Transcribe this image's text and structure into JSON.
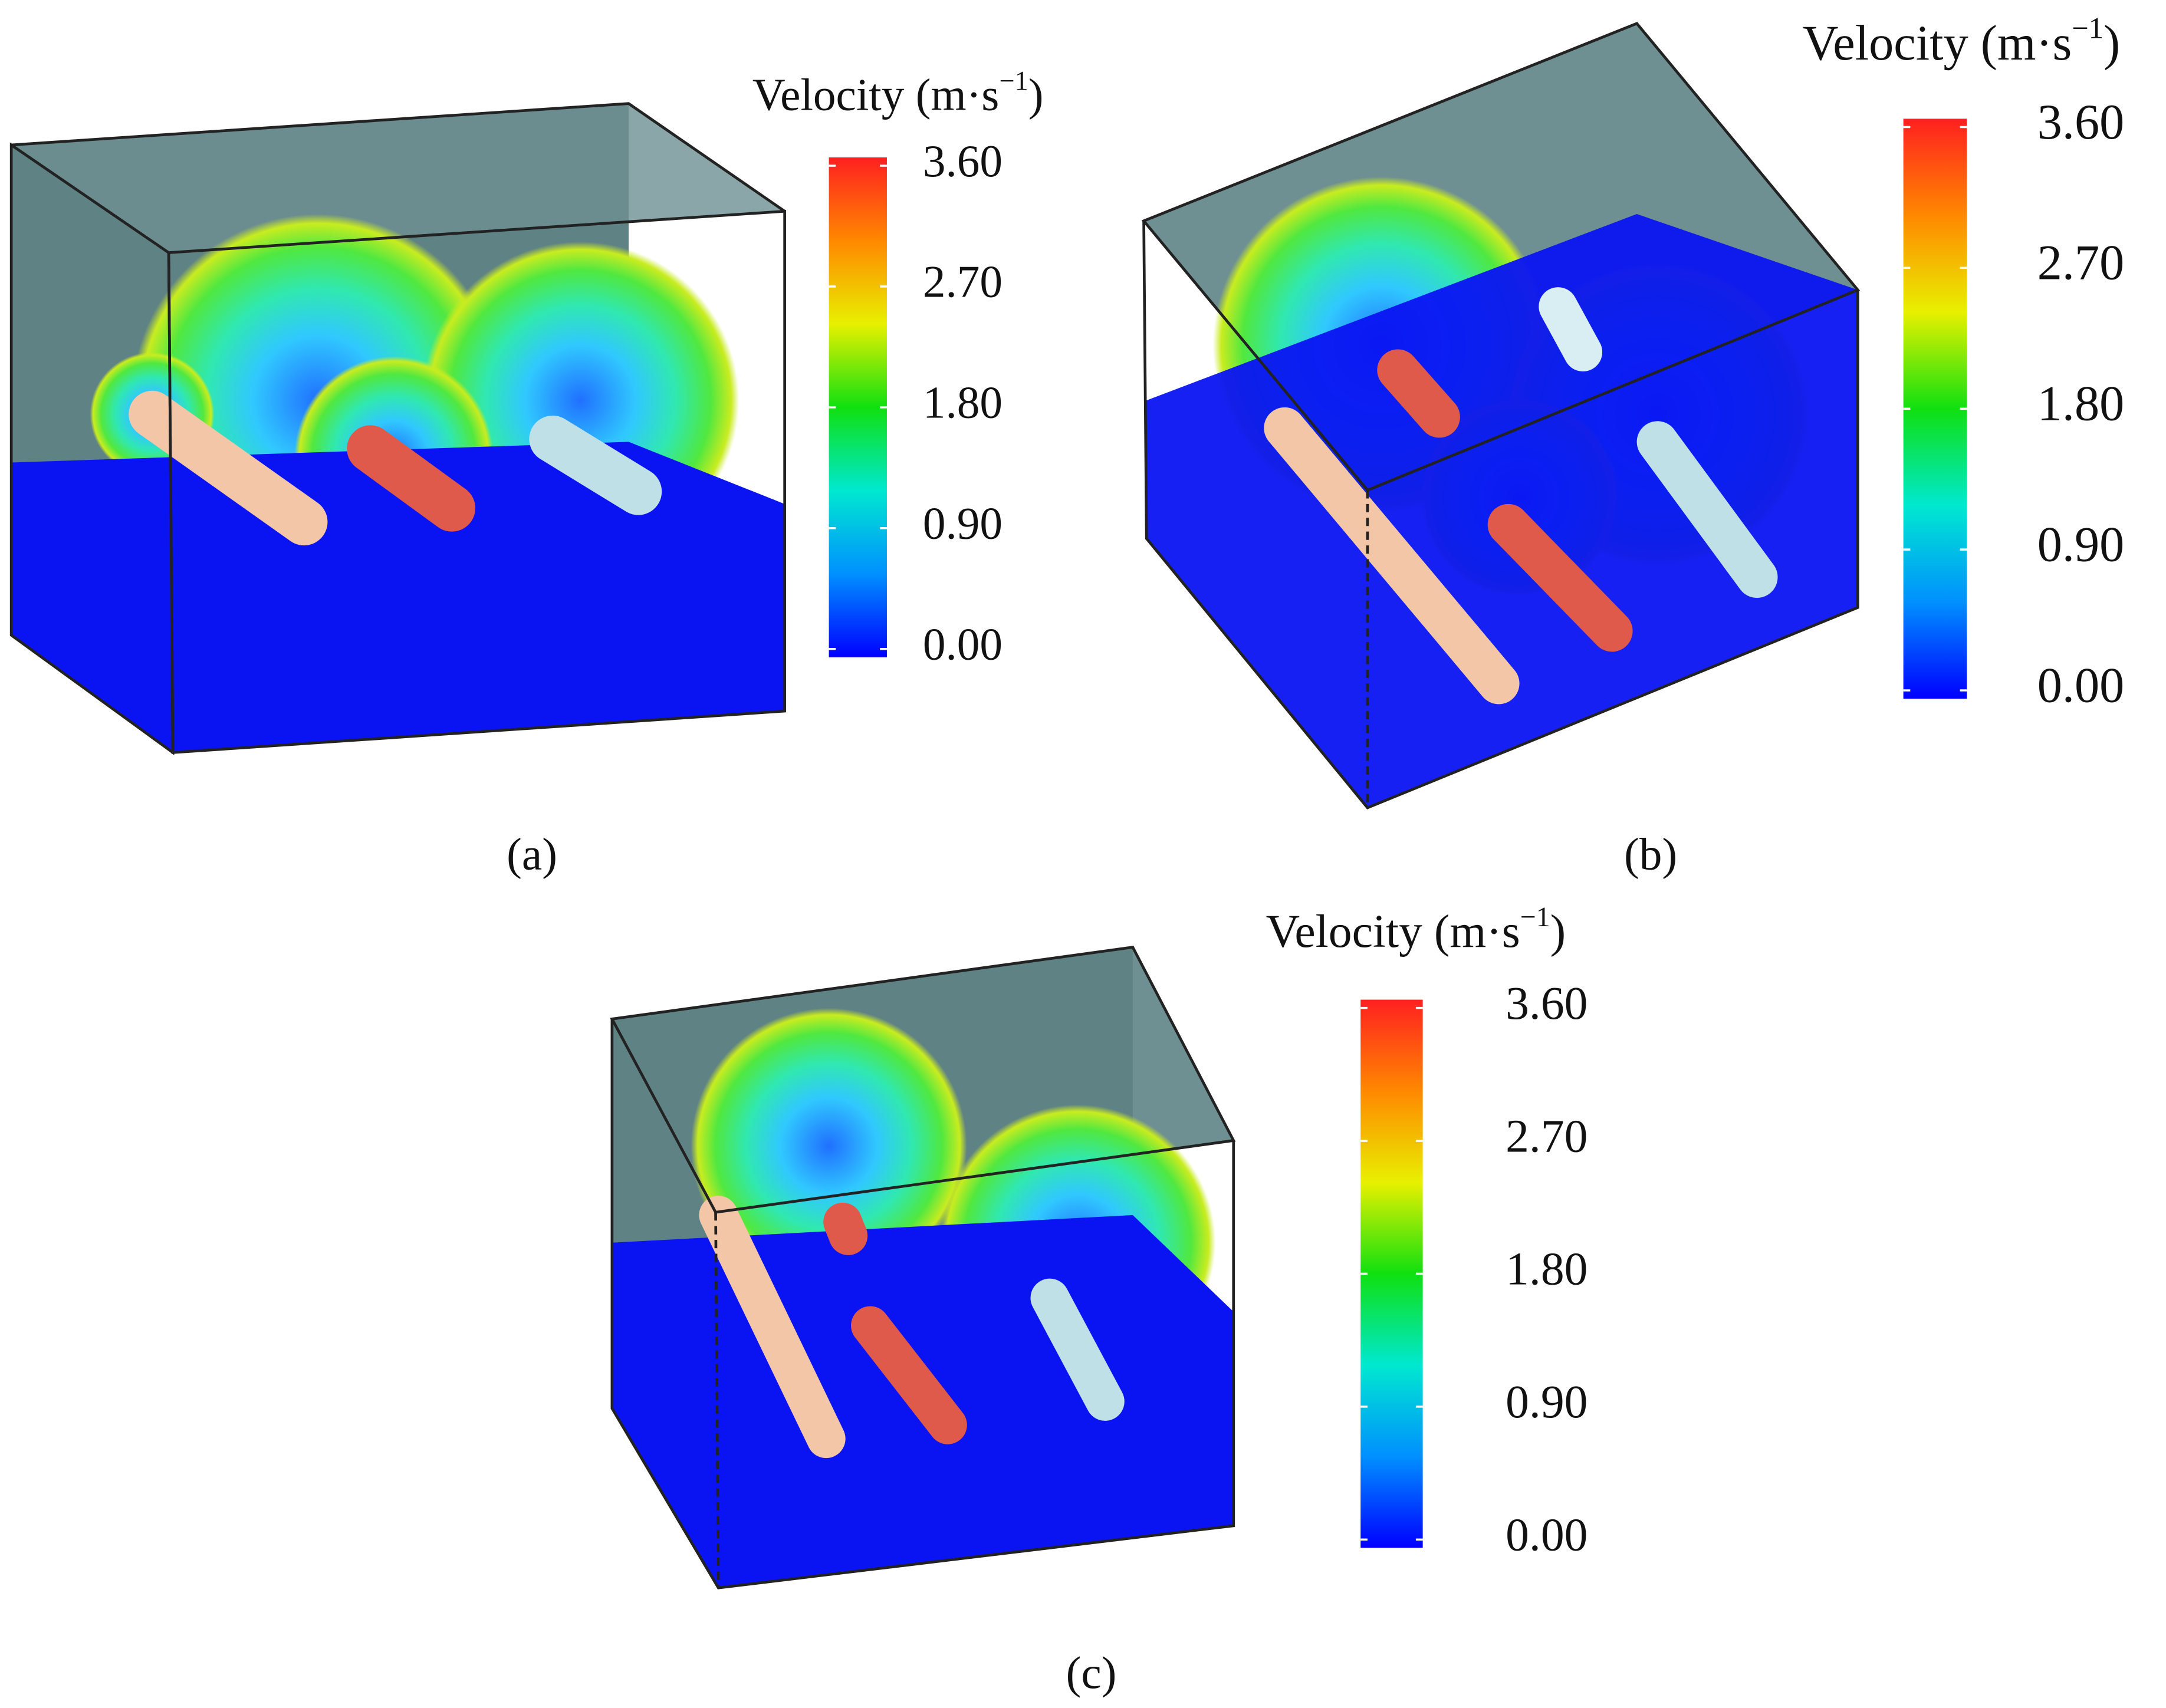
{
  "panels": [
    {
      "label": "(a)",
      "colorbar": {
        "title": {
          "text": "Velocity (m·s",
          "superscript": "−1",
          "close": ")"
        },
        "range": [
          0,
          3.6
        ],
        "colors": [
          "#0000ff",
          "#0090ff",
          "#00e8d0",
          "#10e010",
          "#e8f000",
          "#ff8800",
          "#ff2020"
        ],
        "ticks": [
          {
            "value": 3.6,
            "label": "3.60"
          },
          {
            "value": 2.7,
            "label": "2.70"
          },
          {
            "value": 1.8,
            "label": "1.80"
          },
          {
            "value": 0.9,
            "label": "0.90"
          },
          {
            "value": 0,
            "label": "0.00"
          }
        ]
      }
    },
    {
      "label": "(b)",
      "colorbar": {
        "title": {
          "text": "Velocity (m·s",
          "superscript": "−1",
          "close": ")"
        },
        "range": [
          0,
          3.6
        ],
        "colors": [
          "#0000ff",
          "#0090ff",
          "#00e8d0",
          "#10e010",
          "#e8f000",
          "#ff8800",
          "#ff2020"
        ],
        "ticks": [
          {
            "value": 3.6,
            "label": "3.60"
          },
          {
            "value": 2.7,
            "label": "2.70"
          },
          {
            "value": 1.8,
            "label": "1.80"
          },
          {
            "value": 0.9,
            "label": "0.90"
          },
          {
            "value": 0,
            "label": "0.00"
          }
        ]
      }
    },
    {
      "label": "(c)",
      "colorbar": {
        "title": {
          "text": "Velocity (m·s",
          "superscript": "−1",
          "close": ")"
        },
        "range": [
          0,
          3.6
        ],
        "colors": [
          "#0000ff",
          "#0090ff",
          "#00e8d0",
          "#10e010",
          "#e8f000",
          "#ff8800",
          "#ff2020"
        ],
        "ticks": [
          {
            "value": 3.6,
            "label": "3.60"
          },
          {
            "value": 2.7,
            "label": "2.70"
          },
          {
            "value": 1.8,
            "label": "1.80"
          },
          {
            "value": 0.9,
            "label": "0.90"
          },
          {
            "value": 0,
            "label": "0.00"
          }
        ]
      }
    }
  ]
}
